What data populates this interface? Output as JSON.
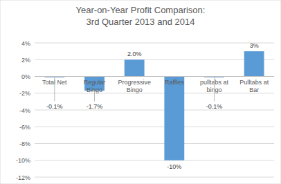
{
  "chart_data": {
    "type": "bar",
    "title": "Year-on-Year Profit Comparison:",
    "subtitle": "3rd Quarter 2013 and 2014",
    "categories": [
      "Total Net",
      "Regular Bingo",
      "Progressive Bingo",
      "Raffles",
      "pulltabs at bingo",
      "Pulltabs at Bar"
    ],
    "values": [
      -0.1,
      -1.7,
      2.0,
      -10,
      -0.1,
      3
    ],
    "value_labels": [
      "-0.1%",
      "-1.7%",
      "2.0%",
      "-10%",
      "-0.1%",
      "3%"
    ],
    "data_labels": true,
    "color": "#5b9bd5",
    "ylim": [
      -12,
      4
    ],
    "yticks": [
      {
        "value": 4,
        "label": "4%"
      },
      {
        "value": 2,
        "label": "2%"
      },
      {
        "value": 0,
        "label": "0%"
      },
      {
        "value": -2,
        "label": "-2%"
      },
      {
        "value": -4,
        "label": "-4%"
      },
      {
        "value": -6,
        "label": "-6%"
      },
      {
        "value": -8,
        "label": "-8%"
      },
      {
        "value": -10,
        "label": "-10%"
      },
      {
        "value": -12,
        "label": "-12%"
      }
    ],
    "grid": true
  }
}
